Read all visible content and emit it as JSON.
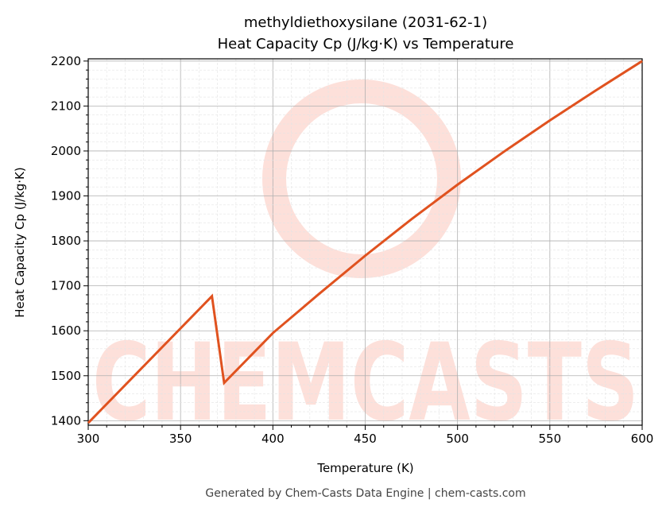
{
  "chart_data": {
    "type": "line",
    "title": "methyldiethoxysilane (2031-62-1)",
    "subtitle": "Heat Capacity Cp (J/kg·K) vs Temperature",
    "xlabel": "Temperature (K)",
    "ylabel": "Heat Capacity Cp (J/kg·K)",
    "xlim": [
      300,
      600
    ],
    "ylim": [
      1390,
      2205
    ],
    "xticks": [
      300,
      350,
      400,
      450,
      500,
      550,
      600
    ],
    "yticks": [
      1400,
      1500,
      1600,
      1700,
      1800,
      1900,
      2000,
      2100,
      2200
    ],
    "grid": true,
    "line_color": "#e0521f",
    "series": [
      {
        "x": [
          300,
          367,
          373.6,
          400,
          425,
          450,
          475,
          500,
          525,
          550,
          575,
          600
        ],
        "y": [
          1395,
          1677,
          1484,
          1595,
          1682,
          1767,
          1848,
          1925,
          1998,
          2068,
          2135,
          2200
        ]
      }
    ]
  },
  "watermark": "CHEMCASTS",
  "footer": "Generated by Chem-Casts Data Engine | chem-casts.com"
}
